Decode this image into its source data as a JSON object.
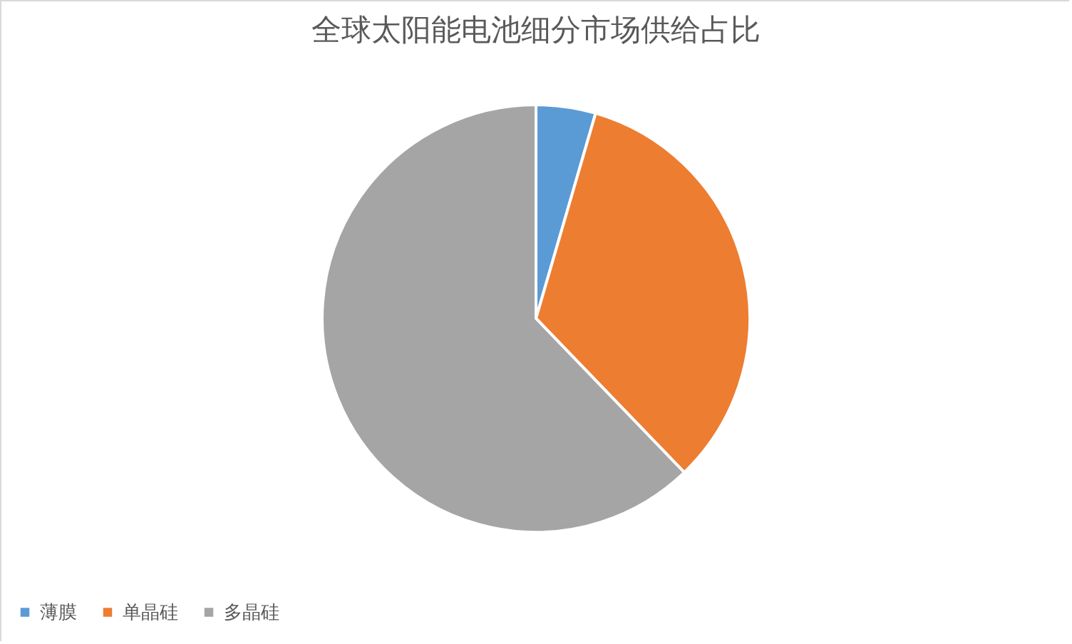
{
  "chart_data": {
    "type": "pie",
    "title": "全球太阳能电池细分市场供给占比",
    "categories": [
      "薄膜",
      "单晶硅",
      "多晶硅"
    ],
    "values": [
      4.5,
      33.3,
      62.2
    ],
    "colors": [
      "#5b9bd5",
      "#ed7d31",
      "#a5a5a5"
    ],
    "legend": "bottom"
  }
}
